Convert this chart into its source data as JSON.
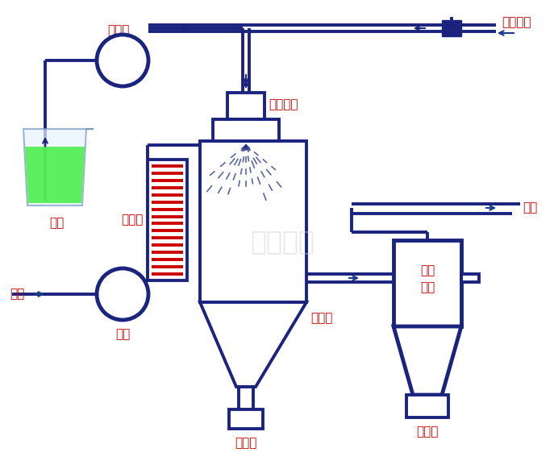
{
  "bg_color": "#ffffff",
  "lc": "#1a237e",
  "rc": "#cc0000",
  "ac": "#1a3a8a",
  "hc": "#cc0000",
  "liq_color": "#44ee44",
  "wm_color": "#d0d0d0",
  "labels": {
    "jinliaobeng": "进料泵",
    "yuanliao": "原料",
    "jiareqi": "加热器",
    "wuhuapentou": "雾化喷头",
    "yasuokongqi": "压缩空气",
    "ganpingpuping": "干燥瓶",
    "xuanfengliri": "旋风\n分离",
    "shoukeping1": "收料瓶",
    "shoukeping2": "收料瓶",
    "weigi": "尾气",
    "kongqi": "空气",
    "fengji": "风机",
    "watermark": "上海歐蒙"
  },
  "figsize": [
    6.87,
    5.77
  ],
  "dpi": 100
}
